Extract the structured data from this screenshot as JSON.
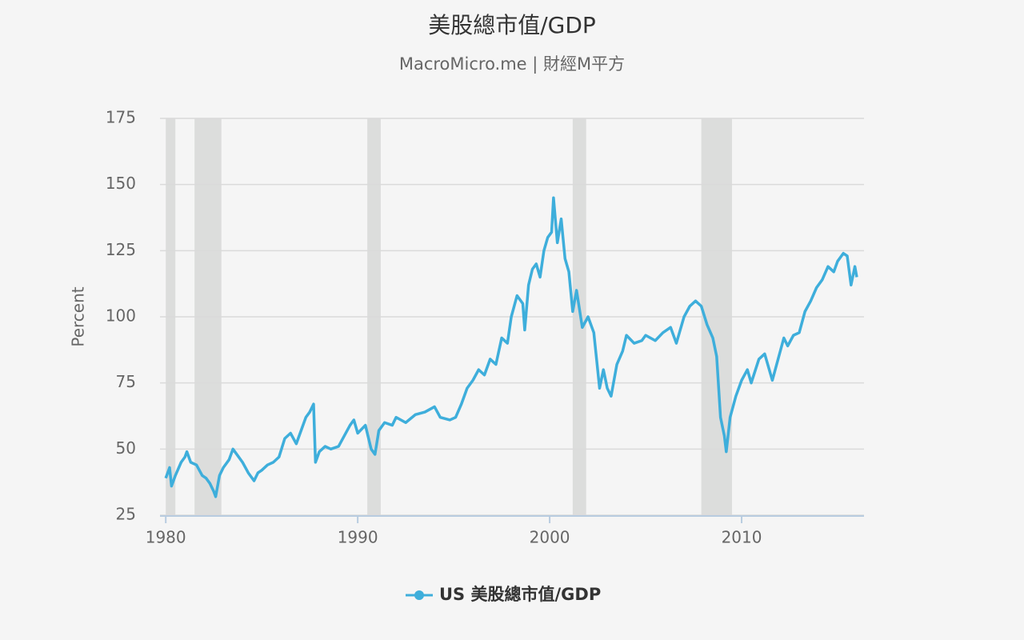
{
  "chart_data": {
    "type": "line",
    "title": "美股總市值/GDP",
    "subtitle": "MacroMicro.me | 財經M平方",
    "ylabel": "Percent",
    "x": [
      1980.0,
      1980.2,
      1980.3,
      1980.5,
      1980.8,
      1981.0,
      1981.1,
      1981.3,
      1981.6,
      1981.9,
      1982.1,
      1982.3,
      1982.5,
      1982.6,
      1982.8,
      1983.0,
      1983.3,
      1983.5,
      1983.7,
      1984.0,
      1984.3,
      1984.6,
      1984.8,
      1985.0,
      1985.3,
      1985.6,
      1985.9,
      1986.2,
      1986.5,
      1986.8,
      1987.0,
      1987.3,
      1987.5,
      1987.7,
      1987.8,
      1988.0,
      1988.3,
      1988.6,
      1989.0,
      1989.3,
      1989.6,
      1989.8,
      1990.0,
      1990.4,
      1990.7,
      1990.9,
      1991.1,
      1991.4,
      1991.8,
      1992.0,
      1992.5,
      1993.0,
      1993.5,
      1994.0,
      1994.3,
      1994.8,
      1995.1,
      1995.4,
      1995.7,
      1996.0,
      1996.3,
      1996.6,
      1996.9,
      1997.2,
      1997.5,
      1997.8,
      1998.0,
      1998.3,
      1998.6,
      1998.7,
      1998.9,
      1999.1,
      1999.3,
      1999.5,
      1999.7,
      1999.9,
      2000.1,
      2000.2,
      2000.4,
      2000.6,
      2000.8,
      2001.0,
      2001.2,
      2001.4,
      2001.7,
      2002.0,
      2002.3,
      2002.6,
      2002.8,
      2003.0,
      2003.2,
      2003.5,
      2003.8,
      2004.0,
      2004.4,
      2004.8,
      2005.0,
      2005.5,
      2005.9,
      2006.3,
      2006.6,
      2007.0,
      2007.3,
      2007.6,
      2007.9,
      2008.2,
      2008.5,
      2008.7,
      2008.9,
      2009.1,
      2009.2,
      2009.4,
      2009.7,
      2010.0,
      2010.3,
      2010.5,
      2010.9,
      2011.2,
      2011.6,
      2011.9,
      2012.2,
      2012.4,
      2012.7,
      2013.0,
      2013.3,
      2013.6,
      2013.9,
      2014.2,
      2014.5,
      2014.8,
      2015.0,
      2015.3,
      2015.5,
      2015.7,
      2015.9,
      2016.0
    ],
    "series": [
      {
        "name": "US 美股總市值/GDP",
        "color": "#3eaedb",
        "values": [
          39,
          43,
          36,
          40,
          45,
          47,
          49,
          45,
          44,
          40,
          39,
          37,
          34,
          32,
          40,
          43,
          46,
          50,
          48,
          45,
          41,
          38,
          41,
          42,
          44,
          45,
          47,
          54,
          56,
          52,
          56,
          62,
          64,
          67,
          45,
          49,
          51,
          50,
          51,
          55,
          59,
          61,
          56,
          59,
          50,
          48,
          57,
          60,
          59,
          62,
          60,
          63,
          64,
          66,
          62,
          61,
          62,
          67,
          73,
          76,
          80,
          78,
          84,
          82,
          92,
          90,
          100,
          108,
          105,
          95,
          112,
          118,
          120,
          115,
          125,
          130,
          132,
          145,
          128,
          137,
          122,
          117,
          102,
          110,
          96,
          100,
          94,
          73,
          80,
          73,
          70,
          82,
          87,
          93,
          90,
          91,
          93,
          91,
          94,
          96,
          90,
          100,
          104,
          106,
          104,
          97,
          92,
          85,
          62,
          55,
          49,
          62,
          70,
          76,
          80,
          75,
          84,
          86,
          76,
          84,
          92,
          89,
          93,
          94,
          102,
          106,
          111,
          114,
          119,
          117,
          121,
          124,
          123,
          112,
          119,
          115
        ]
      }
    ],
    "recessions": [
      [
        1980.0,
        1980.5
      ],
      [
        1981.5,
        1982.9
      ],
      [
        1990.5,
        1991.2
      ],
      [
        2001.2,
        2001.9
      ],
      [
        2007.9,
        2009.5
      ]
    ],
    "recession_color": "#dcdddc",
    "xlim": [
      1979.7,
      2016.375
    ],
    "xticks": [
      1980,
      1990,
      2000,
      2010
    ],
    "ylim": [
      25,
      175
    ],
    "yticks": [
      25,
      50,
      75,
      100,
      125,
      150,
      175
    ],
    "grid": true,
    "legend": "bottom"
  }
}
